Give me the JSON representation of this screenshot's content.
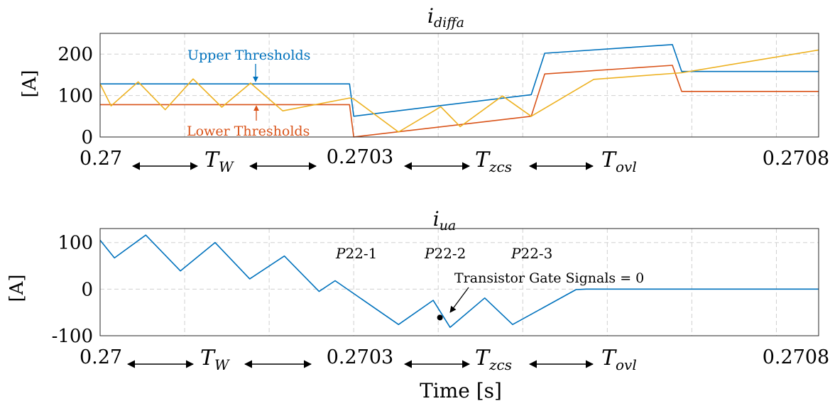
{
  "chart_data": [
    {
      "type": "line",
      "title_main": "i",
      "title_sub": "diffa",
      "ylabel": "[A]",
      "xlim": [
        0.27,
        0.27085
      ],
      "ylim": [
        0,
        250
      ],
      "yticks": [
        0,
        100,
        200
      ],
      "ytick_labels": [
        "0",
        "100",
        "200"
      ],
      "grid": true,
      "xtick_labels": [
        "0.27",
        "0.2703",
        "0.2708"
      ],
      "interval_labels": [
        {
          "main": "T",
          "sub": "W"
        },
        {
          "main": "T",
          "sub": "zcs"
        },
        {
          "main": "T",
          "sub": "ovl"
        }
      ],
      "annotations": {
        "upper": "Upper Thresholds",
        "lower": "Lower Thresholds"
      },
      "series": [
        {
          "color": "#0072BD",
          "points": [
            [
              0.27,
              128
            ],
            [
              0.2702951,
              128
            ],
            [
              0.2703,
              50
            ],
            [
              0.2704,
              75
            ],
            [
              0.27051,
              102
            ],
            [
              0.270526,
              202
            ],
            [
              0.270677,
              223
            ],
            [
              0.270688,
              158
            ],
            [
              0.27085,
              158
            ]
          ]
        },
        {
          "color": "#D95319",
          "points": [
            [
              0.27,
              78
            ],
            [
              0.2702951,
              78
            ],
            [
              0.2703,
              0
            ],
            [
              0.27051,
              50
            ],
            [
              0.270526,
              152
            ],
            [
              0.270677,
              173
            ],
            [
              0.270688,
              110
            ],
            [
              0.27085,
              110
            ]
          ]
        },
        {
          "color": "#EDB120",
          "points": [
            [
              0.27,
              128
            ],
            [
              0.270013,
              75
            ],
            [
              0.270045,
              133
            ],
            [
              0.270077,
              66
            ],
            [
              0.27011,
              140
            ],
            [
              0.270144,
              72
            ],
            [
              0.270178,
              130
            ],
            [
              0.270216,
              63
            ],
            [
              0.2702951,
              94
            ],
            [
              0.2703,
              92
            ],
            [
              0.270353,
              12
            ],
            [
              0.270403,
              73
            ],
            [
              0.270426,
              25
            ],
            [
              0.270476,
              99
            ],
            [
              0.27051,
              50
            ],
            [
              0.270584,
              139
            ],
            [
              0.270688,
              155
            ],
            [
              0.27085,
              210
            ]
          ]
        }
      ]
    },
    {
      "type": "line",
      "title_main": "i",
      "title_sub": "ua",
      "ylabel": "[A]",
      "xlabel": "Time [s]",
      "xlim": [
        0.27,
        0.27085
      ],
      "ylim": [
        -100,
        130
      ],
      "yticks": [
        -100,
        0,
        100
      ],
      "ytick_labels": [
        "-100",
        "0",
        "100"
      ],
      "grid": true,
      "xtick_labels": [
        "0.27",
        "0.2703",
        "0.2708"
      ],
      "interval_labels": [
        {
          "main": "T",
          "sub": "W"
        },
        {
          "main": "T",
          "sub": "zcs"
        },
        {
          "main": "T",
          "sub": "ovl"
        }
      ],
      "annotations": {
        "p1": "P22-1",
        "p2": "P22-2",
        "p3": "P22-3",
        "gate": "Transistor Gate Signals = 0"
      },
      "marker_point": [
        0.270402,
        -61
      ],
      "series": [
        {
          "color": "#0072BD",
          "points": [
            [
              0.27,
              105
            ],
            [
              0.270017,
              67
            ],
            [
              0.270054,
              116
            ],
            [
              0.270095,
              39
            ],
            [
              0.270136,
              100
            ],
            [
              0.270177,
              22
            ],
            [
              0.270218,
              71
            ],
            [
              0.270259,
              -5
            ],
            [
              0.270278,
              18
            ],
            [
              0.270353,
              -76
            ],
            [
              0.270394,
              -24
            ],
            [
              0.270414,
              -82
            ],
            [
              0.270455,
              -19
            ],
            [
              0.270488,
              -76
            ],
            [
              0.270563,
              -1
            ],
            [
              0.270575,
              0
            ],
            [
              0.27085,
              0
            ]
          ]
        }
      ]
    }
  ]
}
